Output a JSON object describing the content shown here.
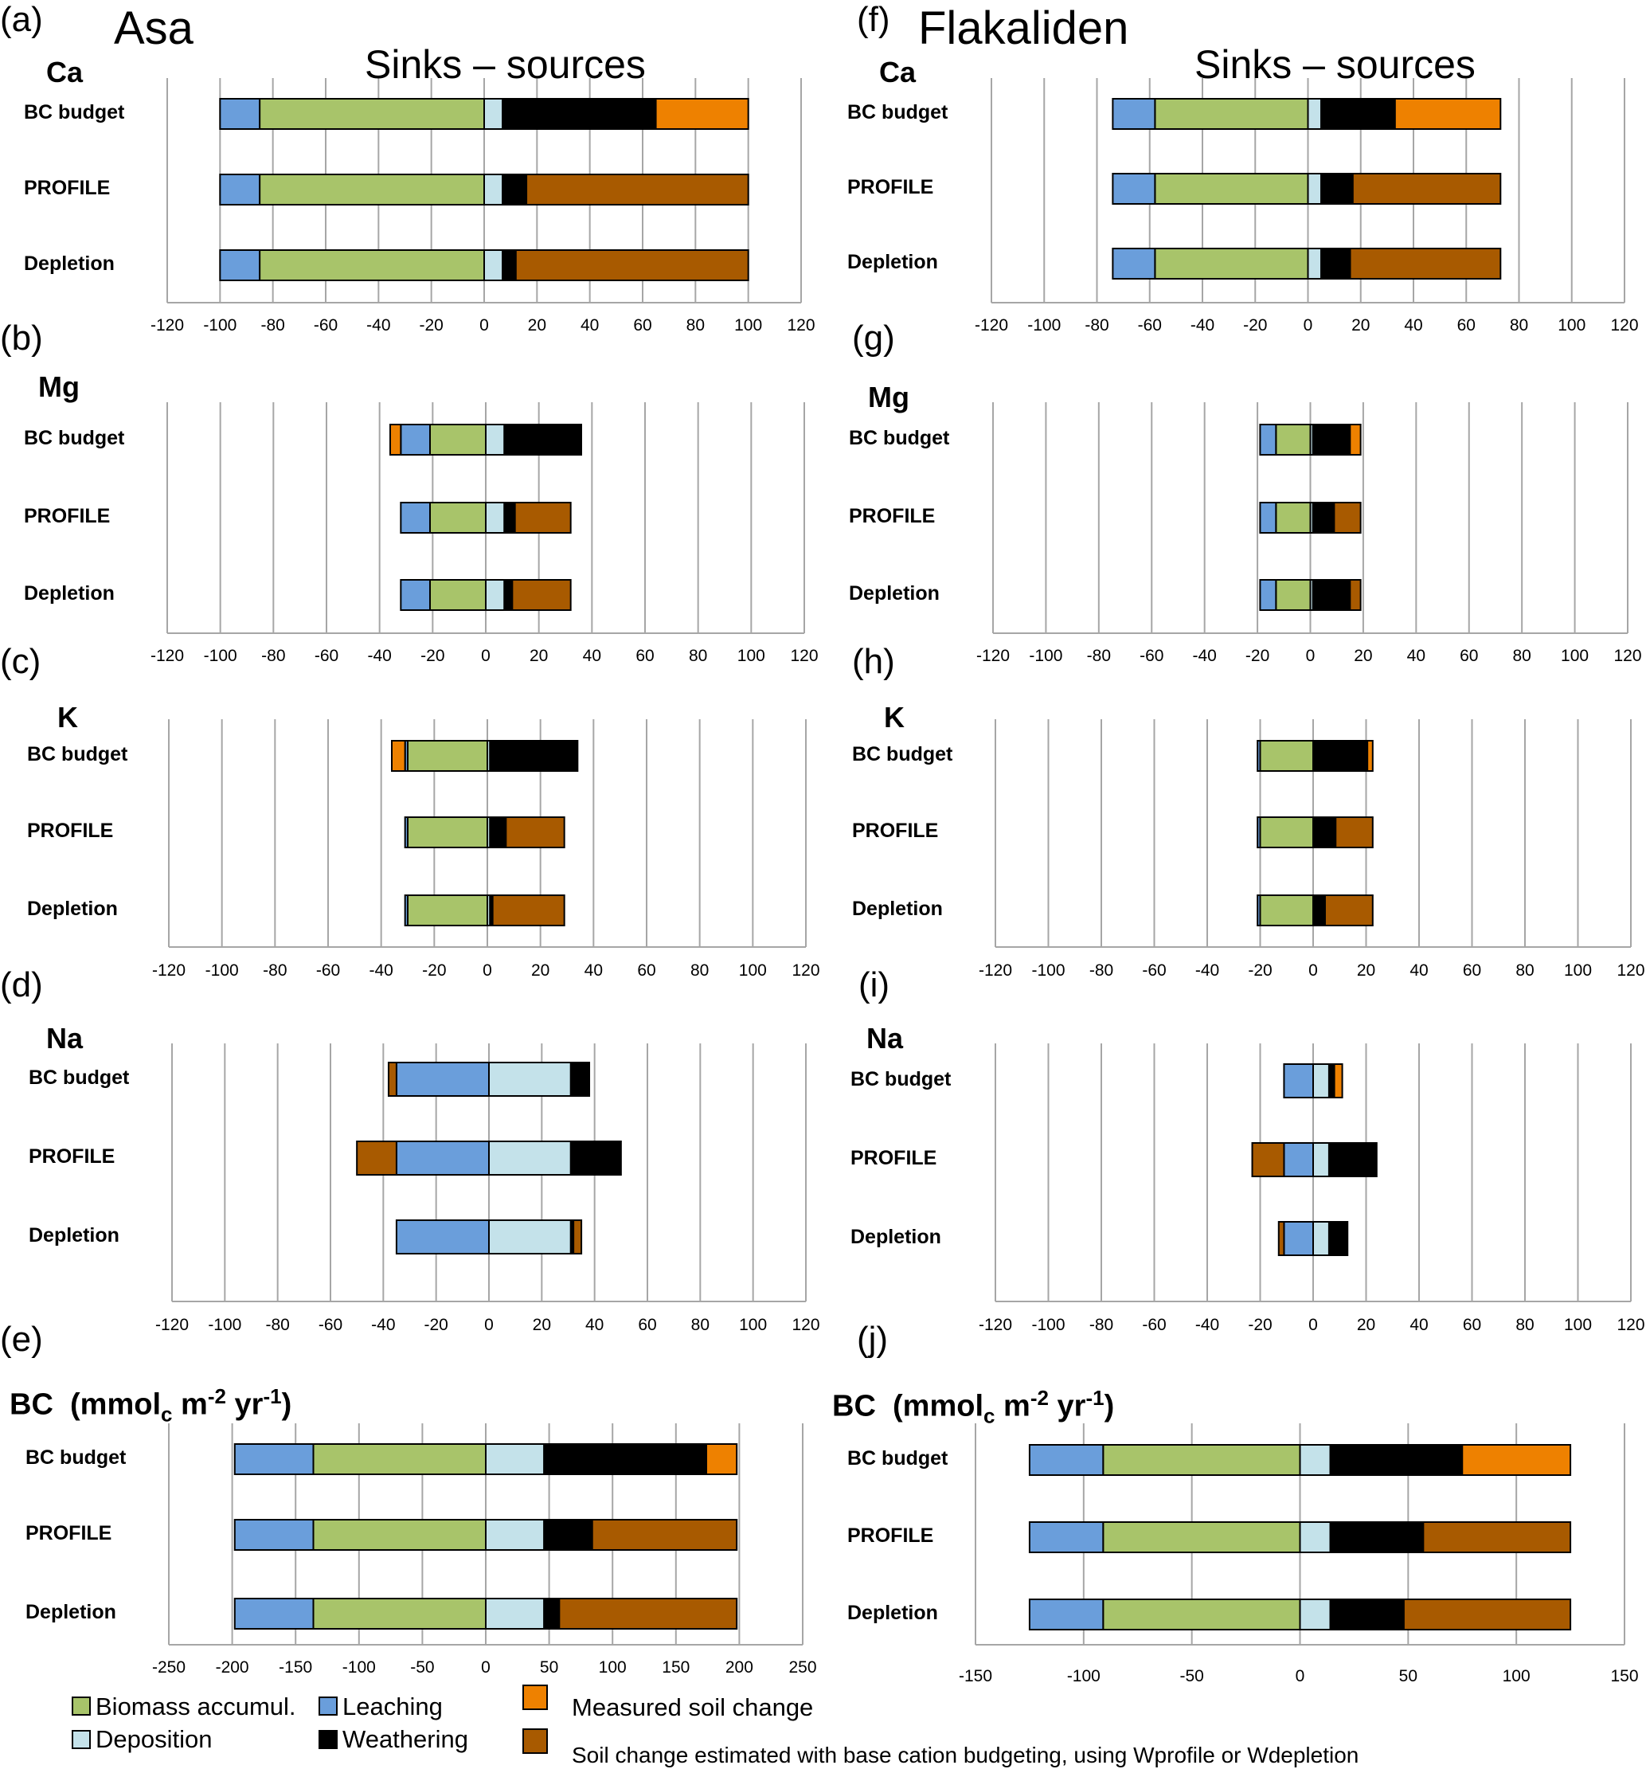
{
  "figure": {
    "site_left": "Asa",
    "site_right": "Flakaliden",
    "sinks_sources": "Sinks  –  sources"
  },
  "colors": {
    "biomass": "#A8C46A",
    "leaching": "#6A9EDB",
    "deposition": "#C4E2EA",
    "weathering": "#000000",
    "measured": "#EE8100",
    "estimated": "#A85A00",
    "grid": "#A6A6A6"
  },
  "legend": {
    "biomass": "Biomass accumul.",
    "leaching": "Leaching",
    "deposition": "Deposition",
    "weathering": "Weathering",
    "measured": "Measured soil change",
    "estimated": "Soil change estimated with base cation budgeting, using Wprofile or Wdepletion"
  },
  "chart_data": [
    {
      "type": "bar",
      "panel": "(a)",
      "site": "Asa",
      "title": "Ca",
      "categories": [
        "BC budget",
        "PROFILE",
        "Depletion"
      ],
      "xlim": [
        -120,
        120
      ],
      "ticks": [
        -120,
        -100,
        -80,
        -60,
        -40,
        -20,
        0,
        20,
        40,
        60,
        80,
        100,
        120
      ],
      "rows": [
        {
          "leaching": -15,
          "biomass": -85,
          "deposition": 7,
          "weathering": 58,
          "measured": 35,
          "estimated": 0
        },
        {
          "leaching": -15,
          "biomass": -85,
          "deposition": 7,
          "weathering": 9,
          "measured": 0,
          "estimated": 84
        },
        {
          "leaching": -15,
          "biomass": -85,
          "deposition": 7,
          "weathering": 5,
          "measured": 0,
          "estimated": 88
        }
      ]
    },
    {
      "type": "bar",
      "panel": "(b)",
      "site": "Asa",
      "title": "Mg",
      "categories": [
        "BC budget",
        "PROFILE",
        "Depletion"
      ],
      "xlim": [
        -120,
        120
      ],
      "ticks": [
        -120,
        -100,
        -80,
        -60,
        -40,
        -20,
        0,
        20,
        40,
        60,
        80,
        100,
        120
      ],
      "rows": [
        {
          "leaching": -11,
          "biomass": -21,
          "deposition": 7,
          "weathering": 29,
          "measured": -4,
          "estimated": 0
        },
        {
          "leaching": -11,
          "biomass": -21,
          "deposition": 7,
          "weathering": 4,
          "measured": 0,
          "estimated": 21
        },
        {
          "leaching": -11,
          "biomass": -21,
          "deposition": 7,
          "weathering": 3,
          "measured": 0,
          "estimated": 22
        }
      ]
    },
    {
      "type": "bar",
      "panel": "(c)",
      "site": "Asa",
      "title": "K",
      "categories": [
        "BC budget",
        "PROFILE",
        "Depletion"
      ],
      "xlim": [
        -120,
        120
      ],
      "ticks": [
        -120,
        -100,
        -80,
        -60,
        -40,
        -20,
        0,
        20,
        40,
        60,
        80,
        100,
        120
      ],
      "rows": [
        {
          "leaching": -1,
          "biomass": -30,
          "deposition": 1,
          "weathering": 33,
          "measured": -5,
          "estimated": 0
        },
        {
          "leaching": -1,
          "biomass": -30,
          "deposition": 1,
          "weathering": 6,
          "measured": 0,
          "estimated": 22
        },
        {
          "leaching": -1,
          "biomass": -30,
          "deposition": 1,
          "weathering": 1,
          "measured": 0,
          "estimated": 27
        }
      ]
    },
    {
      "type": "bar",
      "panel": "(d)",
      "site": "Asa",
      "title": "Na",
      "categories": [
        "BC budget",
        "PROFILE",
        "Depletion"
      ],
      "xlim": [
        -120,
        120
      ],
      "ticks": [
        -120,
        -100,
        -80,
        -60,
        -40,
        -20,
        0,
        20,
        40,
        60,
        80,
        100,
        120
      ],
      "rows": [
        {
          "leaching": -35,
          "biomass": 0,
          "deposition": 31,
          "weathering": 7,
          "measured": 0,
          "estimated": -3
        },
        {
          "leaching": -35,
          "biomass": 0,
          "deposition": 31,
          "weathering": 19,
          "measured": 0,
          "estimated": -15
        },
        {
          "leaching": -35,
          "biomass": 0,
          "deposition": 31,
          "weathering": 1,
          "measured": 0,
          "estimated": 3
        }
      ]
    },
    {
      "type": "bar",
      "panel": "(e)",
      "site": "Asa",
      "title": "BC",
      "unit_label": "(mmol",
      "unit_sub": "c",
      "unit_rest": " m",
      "unit_sup1": "-2",
      "unit_yr": " yr",
      "unit_sup2": "-1",
      "unit_close": ")",
      "categories": [
        "BC budget",
        "PROFILE",
        "Depletion"
      ],
      "xlim": [
        -250,
        250
      ],
      "ticks": [
        -250,
        -200,
        -150,
        -100,
        -50,
        0,
        50,
        100,
        150,
        200,
        250
      ],
      "rows": [
        {
          "leaching": -62,
          "biomass": -136,
          "deposition": 46,
          "weathering": 128,
          "measured": 24,
          "estimated": 0
        },
        {
          "leaching": -62,
          "biomass": -136,
          "deposition": 46,
          "weathering": 38,
          "measured": 0,
          "estimated": 114
        },
        {
          "leaching": -62,
          "biomass": -136,
          "deposition": 46,
          "weathering": 12,
          "measured": 0,
          "estimated": 140
        }
      ]
    },
    {
      "type": "bar",
      "panel": "(f)",
      "site": "Flakaliden",
      "title": "Ca",
      "categories": [
        "BC budget",
        "PROFILE",
        "Depletion"
      ],
      "xlim": [
        -120,
        120
      ],
      "ticks": [
        -120,
        -100,
        -80,
        -60,
        -40,
        -20,
        0,
        20,
        40,
        60,
        80,
        100,
        120
      ],
      "rows": [
        {
          "leaching": -16,
          "biomass": -58,
          "deposition": 5,
          "weathering": 28,
          "measured": 40,
          "estimated": 0
        },
        {
          "leaching": -16,
          "biomass": -58,
          "deposition": 5,
          "weathering": 12,
          "measured": 0,
          "estimated": 56
        },
        {
          "leaching": -16,
          "biomass": -58,
          "deposition": 5,
          "weathering": 11,
          "measured": 0,
          "estimated": 57
        }
      ]
    },
    {
      "type": "bar",
      "panel": "(g)",
      "site": "Flakaliden",
      "title": "Mg",
      "categories": [
        "BC budget",
        "PROFILE",
        "Depletion"
      ],
      "xlim": [
        -120,
        120
      ],
      "ticks": [
        -120,
        -100,
        -80,
        -60,
        -40,
        -20,
        0,
        20,
        40,
        60,
        80,
        100,
        120
      ],
      "rows": [
        {
          "leaching": -6,
          "biomass": -13,
          "deposition": 1,
          "weathering": 14,
          "measured": 4,
          "estimated": 0
        },
        {
          "leaching": -6,
          "biomass": -13,
          "deposition": 1,
          "weathering": 8,
          "measured": 0,
          "estimated": 10
        },
        {
          "leaching": -6,
          "biomass": -13,
          "deposition": 1,
          "weathering": 14,
          "measured": 0,
          "estimated": 4
        }
      ]
    },
    {
      "type": "bar",
      "panel": "(h)",
      "site": "Flakaliden",
      "title": "K",
      "categories": [
        "BC budget",
        "PROFILE",
        "Depletion"
      ],
      "xlim": [
        -120,
        120
      ],
      "ticks": [
        -120,
        -100,
        -80,
        -60,
        -40,
        -20,
        0,
        20,
        40,
        60,
        80,
        100,
        120
      ],
      "rows": [
        {
          "leaching": -1,
          "biomass": -20,
          "deposition": 0.5,
          "weathering": 20,
          "measured": 2,
          "estimated": 0
        },
        {
          "leaching": -1,
          "biomass": -20,
          "deposition": 0.5,
          "weathering": 8,
          "measured": 0,
          "estimated": 14
        },
        {
          "leaching": -1,
          "biomass": -20,
          "deposition": 0.5,
          "weathering": 4,
          "measured": 0,
          "estimated": 18
        }
      ]
    },
    {
      "type": "bar",
      "panel": "(i)",
      "site": "Flakaliden",
      "title": "Na",
      "categories": [
        "BC budget",
        "PROFILE",
        "Depletion"
      ],
      "xlim": [
        -120,
        120
      ],
      "ticks": [
        -120,
        -100,
        -80,
        -60,
        -40,
        -20,
        0,
        20,
        40,
        60,
        80,
        100,
        120
      ],
      "rows": [
        {
          "leaching": -11,
          "biomass": 0,
          "deposition": 6,
          "weathering": 2,
          "measured": 3,
          "estimated": 0
        },
        {
          "leaching": -11,
          "biomass": 0,
          "deposition": 6,
          "weathering": 18,
          "measured": 0,
          "estimated": -12
        },
        {
          "leaching": -11,
          "biomass": 0,
          "deposition": 6,
          "weathering": 7,
          "measured": 0,
          "estimated": -2
        }
      ]
    },
    {
      "type": "bar",
      "panel": "(j)",
      "site": "Flakaliden",
      "title": "BC",
      "unit_label": "(mmol",
      "unit_sub": "c",
      "unit_rest": " m",
      "unit_sup1": "-2",
      "unit_yr": " yr",
      "unit_sup2": "-1",
      "unit_close": ")",
      "categories": [
        "BC budget",
        "PROFILE",
        "Depletion"
      ],
      "xlim": [
        -150,
        150
      ],
      "ticks": [
        -150,
        -100,
        -50,
        0,
        50,
        100,
        150
      ],
      "rows": [
        {
          "leaching": -34,
          "biomass": -91,
          "deposition": 14,
          "weathering": 61,
          "measured": 50,
          "estimated": 0
        },
        {
          "leaching": -34,
          "biomass": -91,
          "deposition": 14,
          "weathering": 43,
          "measured": 0,
          "estimated": 68
        },
        {
          "leaching": -34,
          "biomass": -91,
          "deposition": 14,
          "weathering": 34,
          "measured": 0,
          "estimated": 77
        }
      ]
    }
  ]
}
